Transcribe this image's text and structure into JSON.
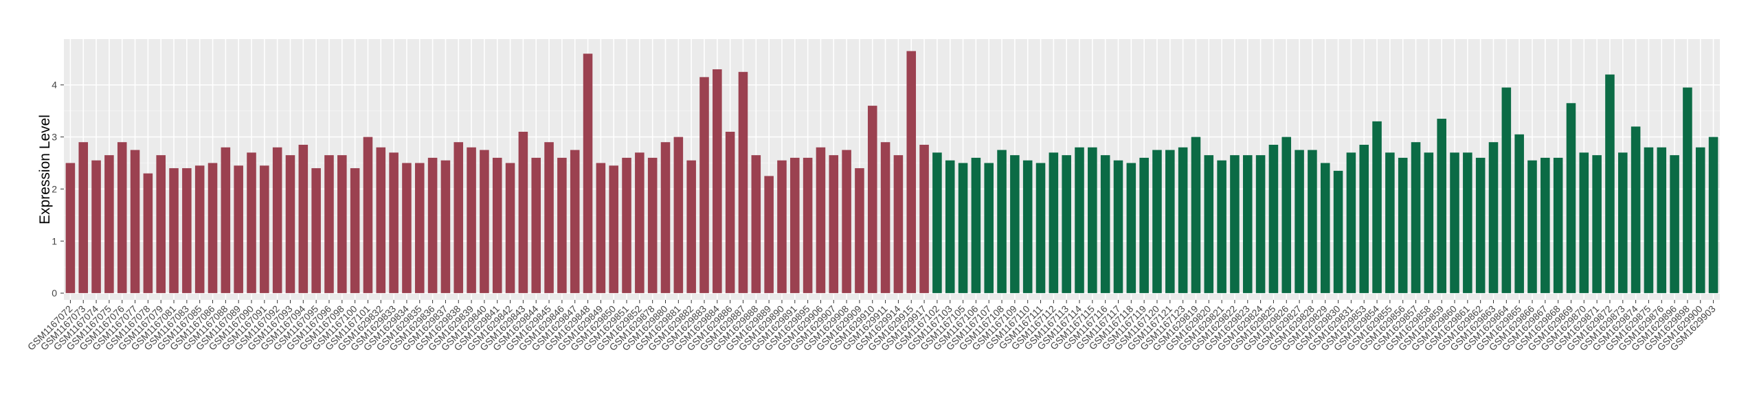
{
  "chart_data": {
    "type": "bar",
    "y_label": "Expression Level",
    "categories": [
      "GSM1167072",
      "GSM1167073",
      "GSM1167074",
      "GSM1167075",
      "GSM1167076",
      "GSM1167077",
      "GSM1167078",
      "GSM1167079",
      "GSM1167081",
      "GSM1167083",
      "GSM1167085",
      "GSM1167086",
      "GSM1167088",
      "GSM1167089",
      "GSM1167090",
      "GSM1167091",
      "GSM1167092",
      "GSM1167093",
      "GSM1167094",
      "GSM1167095",
      "GSM1167096",
      "GSM1167098",
      "GSM1167100",
      "GSM1167101",
      "GSM1629832",
      "GSM1629833",
      "GSM1629834",
      "GSM1629835",
      "GSM1629836",
      "GSM1629837",
      "GSM1629838",
      "GSM1629839",
      "GSM1629840",
      "GSM1629841",
      "GSM1629842",
      "GSM1629843",
      "GSM1629844",
      "GSM1629845",
      "GSM1629846",
      "GSM1629847",
      "GSM1629848",
      "GSM1629849",
      "GSM1629850",
      "GSM1629851",
      "GSM1629852",
      "GSM1629878",
      "GSM1629880",
      "GSM1629881",
      "GSM1629882",
      "GSM1629883",
      "GSM1629884",
      "GSM1629886",
      "GSM1629887",
      "GSM1629888",
      "GSM1629889",
      "GSM1629890",
      "GSM1629891",
      "GSM1629895",
      "GSM1629906",
      "GSM1629907",
      "GSM1629908",
      "GSM1629909",
      "GSM1629910",
      "GSM1629911",
      "GSM1629914",
      "GSM1629915",
      "GSM1629917",
      "GSM1167102",
      "GSM1167103",
      "GSM1167105",
      "GSM1167106",
      "GSM1167107",
      "GSM1167108",
      "GSM1167109",
      "GSM1167110",
      "GSM1167111",
      "GSM1167112",
      "GSM1167113",
      "GSM1167114",
      "GSM1167115",
      "GSM1167116",
      "GSM1167117",
      "GSM1167118",
      "GSM1167119",
      "GSM1167120",
      "GSM1167121",
      "GSM1167123",
      "GSM1629819",
      "GSM1629820",
      "GSM1629821",
      "GSM1629822",
      "GSM1629823",
      "GSM1629824",
      "GSM1629825",
      "GSM1629826",
      "GSM1629827",
      "GSM1629828",
      "GSM1629829",
      "GSM1629830",
      "GSM1629831",
      "GSM1629853",
      "GSM1629854",
      "GSM1629855",
      "GSM1629856",
      "GSM1629857",
      "GSM1629858",
      "GSM1629859",
      "GSM1629860",
      "GSM1629861",
      "GSM1629862",
      "GSM1629863",
      "GSM1629864",
      "GSM1629865",
      "GSM1629866",
      "GSM1629867",
      "GSM1629868",
      "GSM1629869",
      "GSM1629870",
      "GSM1629871",
      "GSM1629872",
      "GSM1629873",
      "GSM1629874",
      "GSM1629875",
      "GSM1629876",
      "GSM1629896",
      "GSM1629898",
      "GSM1629900",
      "GSM1629903"
    ],
    "values": [
      2.5,
      2.9,
      2.55,
      2.65,
      2.9,
      2.75,
      2.3,
      2.65,
      2.4,
      2.4,
      2.45,
      2.5,
      2.8,
      2.45,
      2.7,
      2.45,
      2.8,
      2.65,
      2.85,
      2.4,
      2.65,
      2.65,
      2.4,
      3.0,
      2.8,
      2.7,
      2.5,
      2.5,
      2.6,
      2.55,
      2.9,
      2.8,
      2.75,
      2.6,
      2.5,
      3.1,
      2.6,
      2.9,
      2.6,
      2.75,
      4.6,
      2.5,
      2.45,
      2.6,
      2.7,
      2.6,
      2.9,
      3.0,
      2.55,
      4.15,
      4.3,
      3.1,
      4.25,
      2.65,
      2.25,
      2.55,
      2.6,
      2.6,
      2.8,
      2.65,
      2.75,
      2.4,
      3.6,
      2.9,
      2.65,
      4.65,
      2.85,
      2.7,
      2.55,
      2.5,
      2.6,
      2.5,
      2.75,
      2.65,
      2.55,
      2.5,
      2.7,
      2.65,
      2.8,
      2.8,
      2.65,
      2.55,
      2.5,
      2.6,
      2.75,
      2.75,
      2.8,
      3.0,
      2.65,
      2.55,
      2.65,
      2.65,
      2.65,
      2.85,
      3.0,
      2.75,
      2.75,
      2.5,
      2.35,
      2.7,
      2.85,
      3.3,
      2.7,
      2.6,
      2.9,
      2.7,
      3.35,
      2.7,
      2.7,
      2.6,
      2.9,
      3.95,
      3.05,
      2.55,
      2.6,
      2.6,
      3.65,
      2.7,
      2.65,
      4.2,
      2.7,
      3.2,
      2.8,
      2.8,
      2.65,
      3.95,
      2.8,
      3.0
    ],
    "colors": [
      "#9b4150",
      "#9b4150",
      "#9b4150",
      "#9b4150",
      "#9b4150",
      "#9b4150",
      "#9b4150",
      "#9b4150",
      "#9b4150",
      "#9b4150",
      "#9b4150",
      "#9b4150",
      "#9b4150",
      "#9b4150",
      "#9b4150",
      "#9b4150",
      "#9b4150",
      "#9b4150",
      "#9b4150",
      "#9b4150",
      "#9b4150",
      "#9b4150",
      "#9b4150",
      "#9b4150",
      "#9b4150",
      "#9b4150",
      "#9b4150",
      "#9b4150",
      "#9b4150",
      "#9b4150",
      "#9b4150",
      "#9b4150",
      "#9b4150",
      "#9b4150",
      "#9b4150",
      "#9b4150",
      "#9b4150",
      "#9b4150",
      "#9b4150",
      "#9b4150",
      "#9b4150",
      "#9b4150",
      "#9b4150",
      "#9b4150",
      "#9b4150",
      "#9b4150",
      "#9b4150",
      "#9b4150",
      "#9b4150",
      "#9b4150",
      "#9b4150",
      "#9b4150",
      "#9b4150",
      "#9b4150",
      "#9b4150",
      "#9b4150",
      "#9b4150",
      "#9b4150",
      "#9b4150",
      "#9b4150",
      "#9b4150",
      "#9b4150",
      "#9b4150",
      "#9b4150",
      "#9b4150",
      "#9b4150",
      "#9b4150",
      "#0b6b45",
      "#0b6b45",
      "#0b6b45",
      "#0b6b45",
      "#0b6b45",
      "#0b6b45",
      "#0b6b45",
      "#0b6b45",
      "#0b6b45",
      "#0b6b45",
      "#0b6b45",
      "#0b6b45",
      "#0b6b45",
      "#0b6b45",
      "#0b6b45",
      "#0b6b45",
      "#0b6b45",
      "#0b6b45",
      "#0b6b45",
      "#0b6b45",
      "#0b6b45",
      "#0b6b45",
      "#0b6b45",
      "#0b6b45",
      "#0b6b45",
      "#0b6b45",
      "#0b6b45",
      "#0b6b45",
      "#0b6b45",
      "#0b6b45",
      "#0b6b45",
      "#0b6b45",
      "#0b6b45",
      "#0b6b45",
      "#0b6b45",
      "#0b6b45",
      "#0b6b45",
      "#0b6b45",
      "#0b6b45",
      "#0b6b45",
      "#0b6b45",
      "#0b6b45",
      "#0b6b45",
      "#0b6b45",
      "#0b6b45",
      "#0b6b45",
      "#0b6b45",
      "#0b6b45",
      "#0b6b45",
      "#0b6b45",
      "#0b6b45",
      "#0b6b45",
      "#0b6b45",
      "#0b6b45",
      "#0b6b45",
      "#0b6b45",
      "#0b6b45",
      "#0b6b45",
      "#0b6b45",
      "#0b6b45",
      "#0b6b45"
    ],
    "ylim": [
      -0.13,
      4.88
    ],
    "yticks": [
      0,
      1,
      2,
      3,
      4
    ],
    "grid": true
  }
}
